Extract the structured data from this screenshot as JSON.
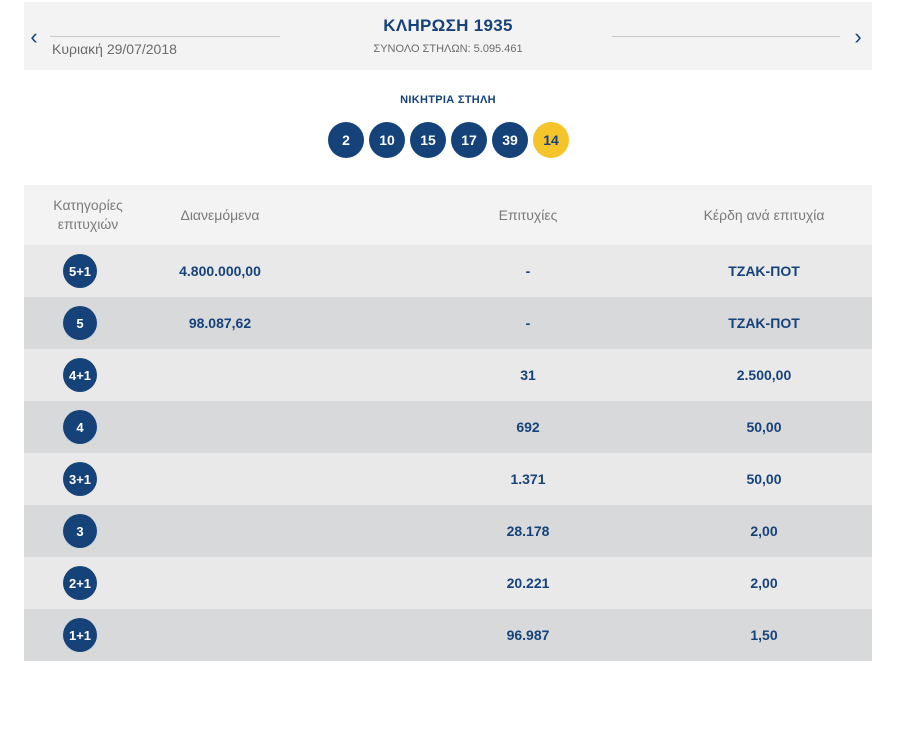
{
  "header": {
    "prev_icon": "chevron-left-icon",
    "next_icon": "chevron-right-icon",
    "date": "Κυριακή 29/07/2018",
    "title": "ΚΛΗΡΩΣΗ 1935",
    "total_columns": "ΣΥΝΟΛΟ ΣΤΗΛΩΝ: 5.095.461"
  },
  "winning": {
    "label": "ΝΙΚΗΤΡΙΑ ΣΤΗΛΗ",
    "numbers": [
      "2",
      "10",
      "15",
      "17",
      "39"
    ],
    "joker": "14"
  },
  "colors": {
    "primary": "#16427a",
    "joker": "#f5c42b",
    "header_bg": "#f3f3f3",
    "row_light": "#e9e9ea",
    "row_dark": "#d8d9db"
  },
  "table": {
    "headers": {
      "category": "Κατηγορίες επιτυχιών",
      "distributed": "Διανεμόμενα",
      "winners": "Επιτυχίες",
      "prize": "Κέρδη ανά επιτυχία"
    },
    "rows": [
      {
        "category": "5+1",
        "distributed": "4.800.000,00",
        "winners": "-",
        "prize": "ΤΖΑΚ-ΠΟΤ"
      },
      {
        "category": "5",
        "distributed": "98.087,62",
        "winners": "-",
        "prize": "ΤΖΑΚ-ΠΟΤ"
      },
      {
        "category": "4+1",
        "distributed": "",
        "winners": "31",
        "prize": "2.500,00"
      },
      {
        "category": "4",
        "distributed": "",
        "winners": "692",
        "prize": "50,00"
      },
      {
        "category": "3+1",
        "distributed": "",
        "winners": "1.371",
        "prize": "50,00"
      },
      {
        "category": "3",
        "distributed": "",
        "winners": "28.178",
        "prize": "2,00"
      },
      {
        "category": "2+1",
        "distributed": "",
        "winners": "20.221",
        "prize": "2,00"
      },
      {
        "category": "1+1",
        "distributed": "",
        "winners": "96.987",
        "prize": "1,50"
      }
    ]
  }
}
